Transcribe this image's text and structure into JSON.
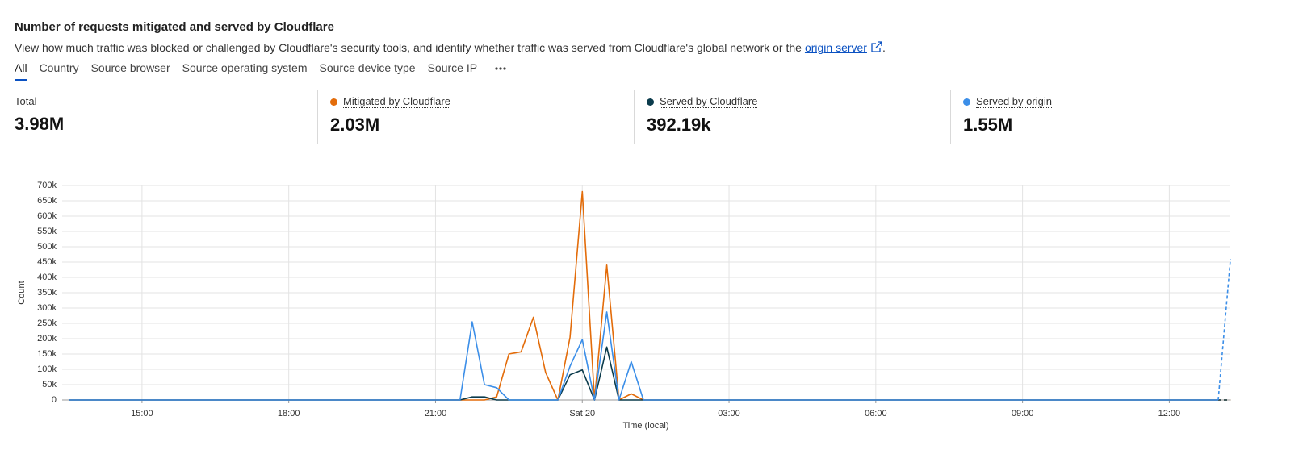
{
  "header": {
    "title": "Number of requests mitigated and served by Cloudflare",
    "description": "View how much traffic was blocked or challenged by Cloudflare's security tools, and identify whether traffic was served from Cloudflare's global network or the",
    "link": "origin server",
    "end": "."
  },
  "tabs": [
    "All",
    "Country",
    "Source browser",
    "Source operating system",
    "Source device type",
    "Source IP"
  ],
  "stats": [
    {
      "label": "Total",
      "value": "3.98M"
    },
    {
      "value": "2.03M"
    },
    {
      "value": "392.19k"
    },
    {
      "value": "1.55M"
    }
  ],
  "chart_data": {
    "type": "line",
    "x_label": "Time (local)",
    "y_label": "Count",
    "categories": [
      null,
      null,
      null,
      null,
      null,
      null,
      "15:00",
      null,
      null,
      null,
      null,
      null,
      null,
      null,
      null,
      null,
      null,
      null,
      "18:00",
      null,
      null,
      null,
      null,
      null,
      null,
      null,
      null,
      null,
      null,
      null,
      "21:00",
      null,
      null,
      null,
      null,
      null,
      null,
      null,
      null,
      null,
      null,
      null,
      "Sat 20",
      null,
      null,
      null,
      null,
      null,
      null,
      null,
      null,
      null,
      null,
      null,
      "03:00",
      null,
      null,
      null,
      null,
      null,
      null,
      null,
      null,
      null,
      null,
      null,
      "06:00",
      null,
      null,
      null,
      null,
      null,
      null,
      null,
      null,
      null,
      null,
      null,
      "09:00",
      null,
      null,
      null,
      null,
      null,
      null,
      null,
      null,
      null,
      null,
      null,
      "12:00",
      null,
      null,
      null,
      null,
      null
    ],
    "series": [
      {
        "name": "Mitigated by Cloudflare",
        "color": "#e36c0a",
        "values": [
          0,
          0,
          0,
          0,
          0,
          0,
          0,
          0,
          0,
          0,
          0,
          0,
          0,
          0,
          0,
          0,
          0,
          0,
          0,
          0,
          0,
          0,
          0,
          0,
          0,
          0,
          0,
          0,
          0,
          0,
          0,
          0,
          0,
          0,
          0,
          10000,
          150000,
          157000,
          270000,
          90000,
          0,
          205000,
          680000,
          0,
          440000,
          0,
          20000,
          0,
          0,
          0,
          0,
          0,
          0,
          0,
          0,
          0,
          0,
          0,
          0,
          0,
          0,
          0,
          0,
          0,
          0,
          0,
          0,
          0,
          0,
          0,
          0,
          0,
          0,
          0,
          0,
          0,
          0,
          0,
          0,
          0,
          0,
          0,
          0,
          0,
          0,
          0,
          0,
          0,
          0,
          0,
          0,
          0,
          0,
          0,
          0,
          0
        ]
      },
      {
        "name": "Served by Cloudflare",
        "color": "#0b3b4c",
        "values": [
          0,
          0,
          0,
          0,
          0,
          0,
          0,
          0,
          0,
          0,
          0,
          0,
          0,
          0,
          0,
          0,
          0,
          0,
          0,
          0,
          0,
          0,
          0,
          0,
          0,
          0,
          0,
          0,
          0,
          0,
          0,
          0,
          0,
          10000,
          10000,
          0,
          0,
          0,
          0,
          0,
          0,
          82000,
          98000,
          0,
          173000,
          0,
          0,
          0,
          0,
          0,
          0,
          0,
          0,
          0,
          0,
          0,
          0,
          0,
          0,
          0,
          0,
          0,
          0,
          0,
          0,
          0,
          0,
          0,
          0,
          0,
          0,
          0,
          0,
          0,
          0,
          0,
          0,
          0,
          0,
          0,
          0,
          0,
          0,
          0,
          0,
          0,
          0,
          0,
          0,
          0,
          0,
          0,
          0,
          0,
          0,
          0
        ]
      },
      {
        "name": "Served by origin",
        "color": "#3b8ee8",
        "values": [
          0,
          0,
          0,
          0,
          0,
          0,
          0,
          0,
          0,
          0,
          0,
          0,
          0,
          0,
          0,
          0,
          0,
          0,
          0,
          0,
          0,
          0,
          0,
          0,
          0,
          0,
          0,
          0,
          0,
          0,
          0,
          0,
          0,
          255000,
          50000,
          40000,
          0,
          0,
          0,
          0,
          0,
          110000,
          197000,
          0,
          287000,
          0,
          125000,
          0,
          0,
          0,
          0,
          0,
          0,
          0,
          0,
          0,
          0,
          0,
          0,
          0,
          0,
          0,
          0,
          0,
          0,
          0,
          0,
          0,
          0,
          0,
          0,
          0,
          0,
          0,
          0,
          0,
          0,
          0,
          0,
          0,
          0,
          0,
          0,
          0,
          0,
          0,
          0,
          0,
          0,
          0,
          0,
          0,
          0,
          0,
          0,
          460000
        ]
      }
    ],
    "ylim": [
      0,
      700000
    ],
    "yticks": [
      0,
      {
        "value": 50000,
        "label": "50k"
      },
      {
        "value": 100000,
        "label": "100k"
      },
      {
        "value": 150000,
        "label": "150k"
      },
      {
        "value": 200000,
        "label": "200k"
      },
      {
        "value": 250000,
        "label": "250k"
      },
      {
        "value": 300000,
        "label": "300k"
      },
      {
        "value": 350000,
        "label": "350k"
      },
      {
        "value": 400000,
        "label": "400k"
      },
      {
        "value": 450000,
        "label": "450k"
      },
      {
        "value": 500000,
        "label": "500k"
      },
      {
        "value": 550000,
        "label": "550k"
      },
      {
        "value": 600000,
        "label": "600k"
      },
      {
        "value": 650000,
        "label": "650k"
      },
      {
        "value": 700000,
        "label": "700k"
      }
    ],
    "grid": true
  }
}
